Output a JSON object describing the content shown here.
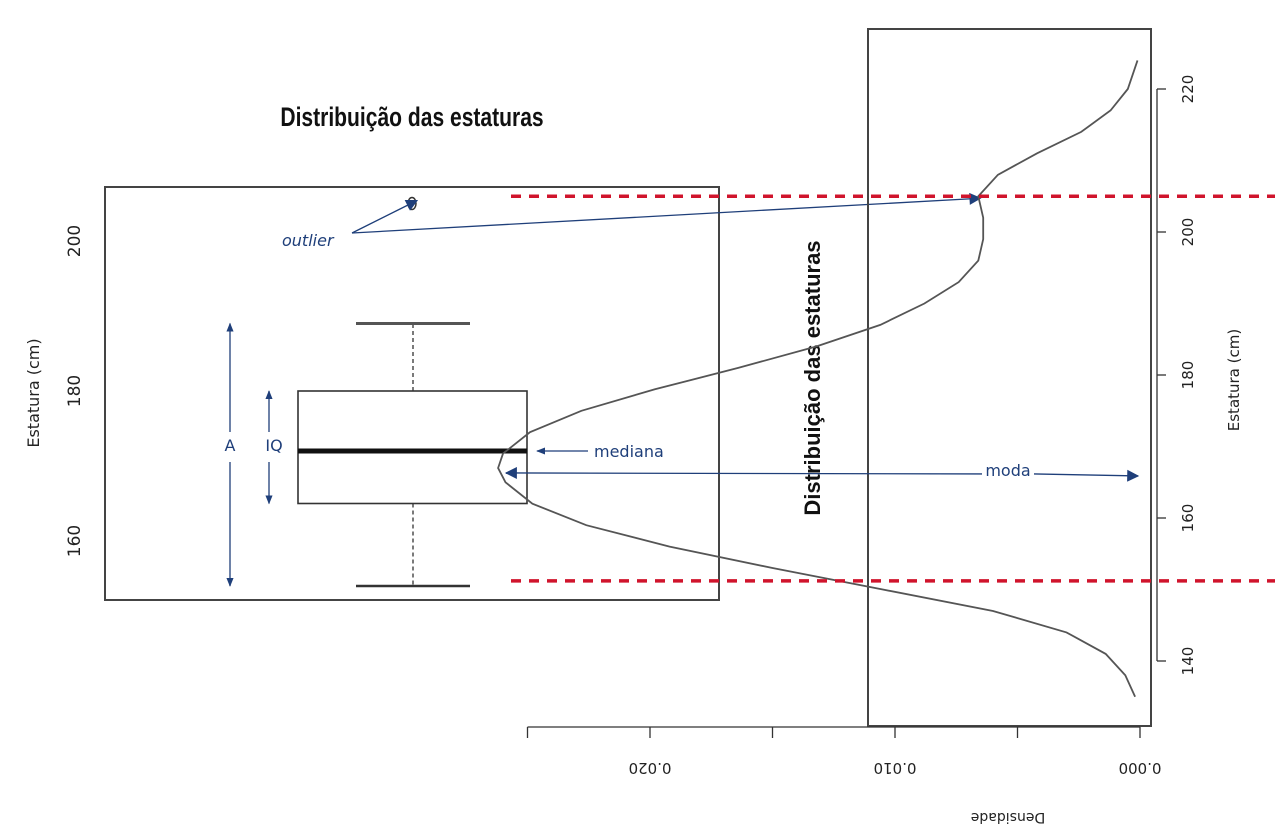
{
  "colors": {
    "annotation": "#1f3f7a",
    "guide": "#d0142c",
    "ink": "#222222"
  },
  "boxplot": {
    "title": "Distribuição das estaturas",
    "ylabel": "Estatura (cm)",
    "yticks": [
      "160",
      "180",
      "200"
    ],
    "annotations": {
      "outlier": "outlier",
      "range": "A",
      "iqr": "IQ",
      "median": "mediana"
    }
  },
  "density": {
    "title": "Distribuição das estaturas",
    "ylabel": "Estatura (cm)",
    "xlabel": "Densidade",
    "yticks": [
      "140",
      "160",
      "180",
      "200",
      "220"
    ],
    "xticks": [
      "0.000",
      "0.010",
      "0.020"
    ],
    "annotations": {
      "mode": "moda"
    }
  },
  "chart_data": [
    {
      "type": "boxplot",
      "title": "Distribuição das estaturas",
      "ylabel": "Estatura (cm)",
      "ylim": [
        152,
        207
      ],
      "stats": {
        "whisker_low": 154,
        "q1": 165,
        "median": 172,
        "q3": 180,
        "whisker_high": 189,
        "outliers": [
          205
        ]
      }
    },
    {
      "type": "line",
      "title": "Distribuição das estaturas",
      "xlabel": "Densidade",
      "ylabel": "Estatura (cm)",
      "xlim": [
        0,
        0.0275
      ],
      "ylim": [
        131,
        228
      ],
      "x_reversed": true,
      "mode": 167,
      "points": [
        {
          "height": 135,
          "density": 0.0002
        },
        {
          "height": 138,
          "density": 0.0006
        },
        {
          "height": 141,
          "density": 0.0014
        },
        {
          "height": 144,
          "density": 0.003
        },
        {
          "height": 147,
          "density": 0.006
        },
        {
          "height": 150,
          "density": 0.0105
        },
        {
          "height": 153,
          "density": 0.015
        },
        {
          "height": 156,
          "density": 0.0192
        },
        {
          "height": 159,
          "density": 0.0226
        },
        {
          "height": 162,
          "density": 0.0248
        },
        {
          "height": 165,
          "density": 0.0259
        },
        {
          "height": 167,
          "density": 0.0262
        },
        {
          "height": 169,
          "density": 0.026
        },
        {
          "height": 172,
          "density": 0.0249
        },
        {
          "height": 175,
          "density": 0.0228
        },
        {
          "height": 178,
          "density": 0.0198
        },
        {
          "height": 181,
          "density": 0.0164
        },
        {
          "height": 184,
          "density": 0.0132
        },
        {
          "height": 187,
          "density": 0.0106
        },
        {
          "height": 190,
          "density": 0.0088
        },
        {
          "height": 193,
          "density": 0.0074
        },
        {
          "height": 196,
          "density": 0.0066
        },
        {
          "height": 199,
          "density": 0.0064
        },
        {
          "height": 202,
          "density": 0.0064
        },
        {
          "height": 205,
          "density": 0.0066
        },
        {
          "height": 208,
          "density": 0.0058
        },
        {
          "height": 211,
          "density": 0.0042
        },
        {
          "height": 214,
          "density": 0.0024
        },
        {
          "height": 217,
          "density": 0.0012
        },
        {
          "height": 220,
          "density": 0.0005
        },
        {
          "height": 224,
          "density": 0.0001
        }
      ]
    }
  ]
}
